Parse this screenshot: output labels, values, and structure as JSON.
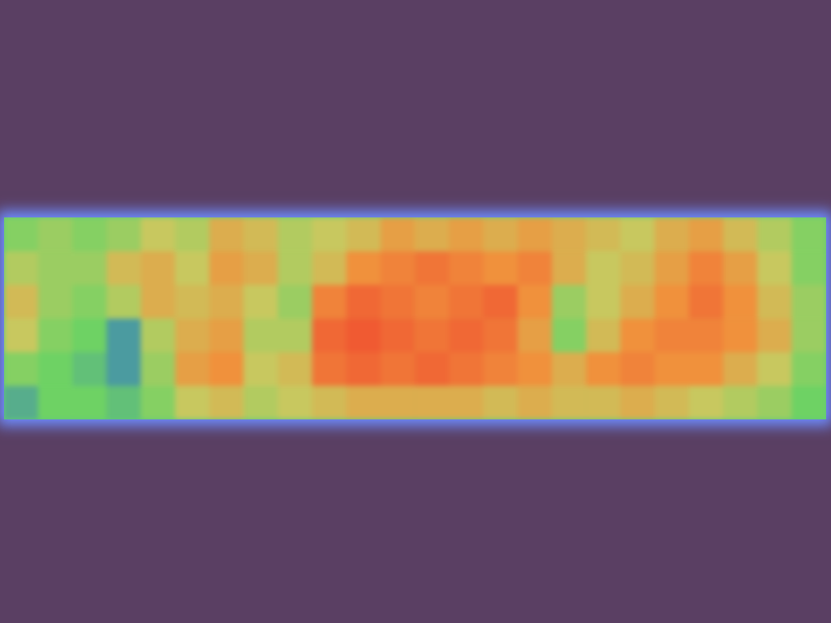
{
  "chart_data": {
    "type": "heatmap",
    "tick_labels": false,
    "zlim": [
      0,
      1
    ],
    "cells": [
      [
        0.35,
        0.4,
        0.35,
        0.4,
        0.5,
        0.45,
        0.6,
        0.55,
        0.45,
        0.5,
        0.55,
        0.65,
        0.6,
        0.65,
        0.6,
        0.65,
        0.6,
        0.55,
        0.5,
        0.6,
        0.65,
        0.55,
        0.45,
        0.35
      ],
      [
        0.45,
        0.4,
        0.4,
        0.55,
        0.6,
        0.5,
        0.65,
        0.6,
        0.45,
        0.55,
        0.7,
        0.75,
        0.8,
        0.75,
        0.7,
        0.75,
        0.6,
        0.5,
        0.55,
        0.65,
        0.75,
        0.65,
        0.5,
        0.35
      ],
      [
        0.55,
        0.4,
        0.35,
        0.45,
        0.6,
        0.55,
        0.6,
        0.5,
        0.4,
        0.75,
        0.85,
        0.8,
        0.75,
        0.8,
        0.85,
        0.7,
        0.4,
        0.5,
        0.6,
        0.7,
        0.8,
        0.7,
        0.55,
        0.4
      ],
      [
        0.5,
        0.35,
        0.3,
        0.15,
        0.45,
        0.6,
        0.65,
        0.45,
        0.45,
        0.85,
        0.9,
        0.85,
        0.8,
        0.85,
        0.8,
        0.65,
        0.35,
        0.55,
        0.7,
        0.75,
        0.75,
        0.7,
        0.6,
        0.4
      ],
      [
        0.35,
        0.3,
        0.25,
        0.15,
        0.4,
        0.65,
        0.7,
        0.5,
        0.55,
        0.8,
        0.85,
        0.8,
        0.85,
        0.8,
        0.75,
        0.7,
        0.6,
        0.7,
        0.75,
        0.7,
        0.7,
        0.6,
        0.5,
        0.35
      ],
      [
        0.2,
        0.3,
        0.3,
        0.25,
        0.35,
        0.5,
        0.55,
        0.45,
        0.5,
        0.55,
        0.6,
        0.6,
        0.6,
        0.6,
        0.55,
        0.6,
        0.55,
        0.55,
        0.6,
        0.55,
        0.5,
        0.45,
        0.4,
        0.3
      ]
    ]
  }
}
